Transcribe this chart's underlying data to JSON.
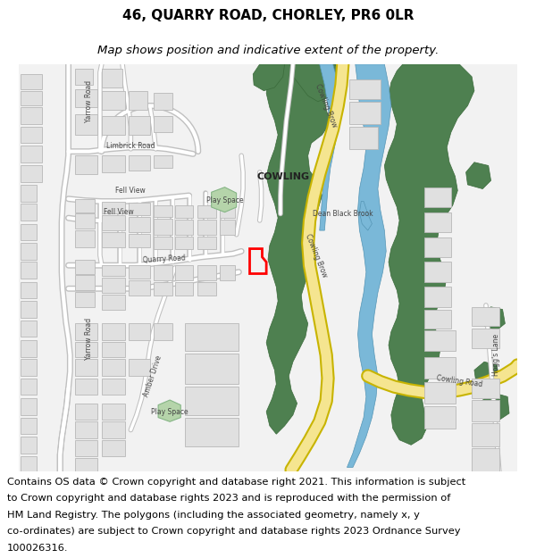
{
  "title": "46, QUARRY ROAD, CHORLEY, PR6 0LR",
  "subtitle": "Map shows position and indicative extent of the property.",
  "footer_lines": [
    "Contains OS data © Crown copyright and database right 2021. This information is subject",
    "to Crown copyright and database rights 2023 and is reproduced with the permission of",
    "HM Land Registry. The polygons (including the associated geometry, namely x, y",
    "co-ordinates) are subject to Crown copyright and database rights 2023 Ordnance Survey",
    "100026316."
  ],
  "map_bg": "#f2f2f2",
  "building_color": "#e0e0e0",
  "building_outline": "#b8b8b8",
  "green_color": "#4e8050",
  "green_light": "#b5d4aa",
  "water_color": "#7ab8d8",
  "yellow_road": "#f5e590",
  "yellow_road_out": "#c8b400",
  "white_road_out": "#c0c0c0",
  "plot_color": "#ff0000",
  "title_fontsize": 11,
  "subtitle_fontsize": 9.5,
  "footer_fontsize": 8.2
}
